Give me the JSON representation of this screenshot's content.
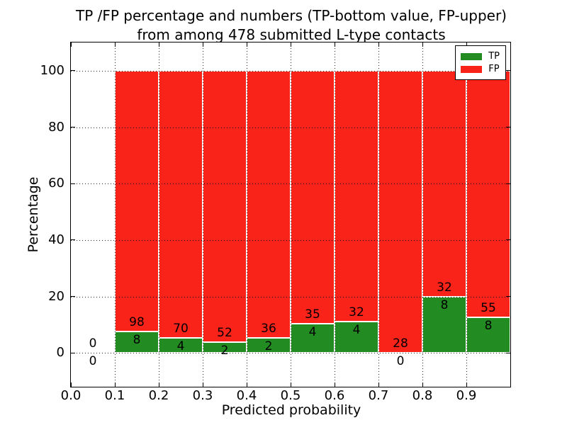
{
  "title": {
    "line1": "TP /FP percentage and numbers (TP-bottom value, FP-upper)",
    "line2": "from among 478 submitted L-type contacts"
  },
  "axes": {
    "xlabel": "Predicted probability",
    "ylabel": "Percentage",
    "xtick_values": [
      0.0,
      0.1,
      0.2,
      0.3,
      0.4,
      0.5,
      0.6,
      0.7,
      0.8,
      0.9
    ],
    "xtick_labels": [
      "0.0",
      "0.1",
      "0.2",
      "0.3",
      "0.4",
      "0.5",
      "0.6",
      "0.7",
      "0.8",
      "0.9"
    ],
    "ytick_values": [
      0,
      20,
      40,
      60,
      80,
      100
    ],
    "ytick_labels": [
      "0",
      "20",
      "40",
      "60",
      "80",
      "100"
    ],
    "xlim": [
      0.0,
      1.0
    ],
    "ylim": [
      -12,
      110
    ],
    "grid": "dotted"
  },
  "legend": {
    "position": "upper right",
    "items": [
      {
        "label": "TP",
        "color": "#228b22"
      },
      {
        "label": "FP",
        "color": "#fa231a"
      }
    ]
  },
  "chart_data": {
    "type": "bar",
    "stacked": true,
    "note": "Bars show TP percentage (green, bottom) stacked with FP (red) to 100%; labels are raw counts, FP above TP",
    "colors": {
      "tp": "#228b22",
      "fp": "#fa231a"
    },
    "bins": [
      {
        "x0": 0.0,
        "x1": 0.1,
        "tp": 0,
        "fp": 0,
        "tp_pct": 0.0
      },
      {
        "x0": 0.1,
        "x1": 0.2,
        "tp": 8,
        "fp": 98,
        "tp_pct": 7.55
      },
      {
        "x0": 0.2,
        "x1": 0.3,
        "tp": 4,
        "fp": 70,
        "tp_pct": 5.41
      },
      {
        "x0": 0.3,
        "x1": 0.4,
        "tp": 2,
        "fp": 52,
        "tp_pct": 3.7
      },
      {
        "x0": 0.4,
        "x1": 0.5,
        "tp": 2,
        "fp": 36,
        "tp_pct": 5.26
      },
      {
        "x0": 0.5,
        "x1": 0.6,
        "tp": 4,
        "fp": 35,
        "tp_pct": 10.26
      },
      {
        "x0": 0.6,
        "x1": 0.7,
        "tp": 4,
        "fp": 32,
        "tp_pct": 11.11
      },
      {
        "x0": 0.7,
        "x1": 0.8,
        "tp": 0,
        "fp": 28,
        "tp_pct": 0.0
      },
      {
        "x0": 0.8,
        "x1": 0.9,
        "tp": 8,
        "fp": 32,
        "tp_pct": 20.0
      },
      {
        "x0": 0.9,
        "x1": 1.0,
        "tp": 8,
        "fp": 55,
        "tp_pct": 12.7
      }
    ]
  }
}
